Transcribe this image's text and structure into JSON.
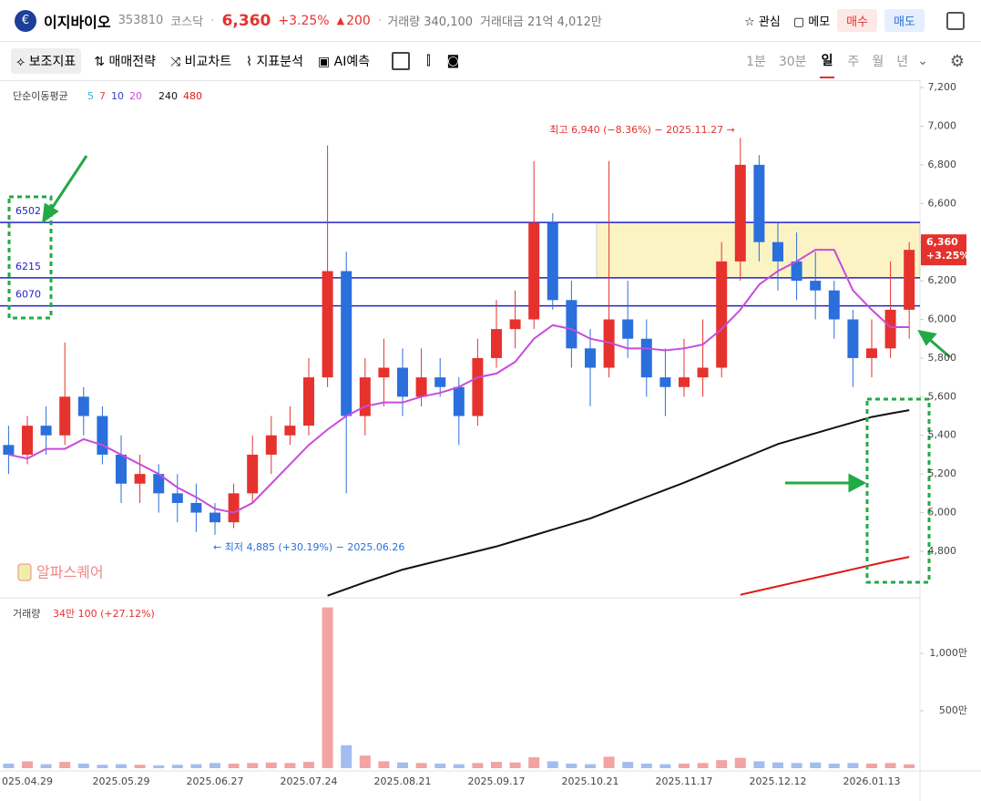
{
  "header": {
    "name": "이지바이오",
    "code": "353810",
    "market": "코스닥",
    "price": "6,360",
    "change": "+3.25%",
    "change_amount": "200",
    "volume_label": "거래량 340,100",
    "amount_label": "거래대금 21억 4,012만",
    "buttons": [
      "관심",
      "메모",
      "매수",
      "매도"
    ]
  },
  "toolbar": {
    "tools": [
      "보조지표",
      "매매전략",
      "비교차트",
      "지표분석",
      "AI예측"
    ],
    "periods": [
      "1분",
      "30분",
      "일",
      "주",
      "월",
      "년"
    ]
  },
  "chart_data": {
    "type": "candlestick",
    "ma_title": "단순이동평균",
    "watermark": "알파스퀘어",
    "categories": [
      null,
      "025.04.29",
      null,
      null,
      null,
      null,
      "2025.05.29",
      null,
      null,
      null,
      null,
      "2025.06.27",
      null,
      null,
      null,
      null,
      "2025.07.24",
      null,
      null,
      null,
      null,
      "2025.08.21",
      null,
      null,
      null,
      null,
      "2025.09.17",
      null,
      null,
      null,
      null,
      "2025.10.21",
      null,
      null,
      null,
      null,
      "2025.11.17",
      null,
      null,
      null,
      null,
      "2025.12.12",
      null,
      null,
      null,
      null,
      "2026.01.13",
      null,
      null
    ],
    "candles": {
      "up_color": "#e5322d",
      "down_color": "#2a6fdb",
      "open": [
        5350,
        5300,
        5450,
        5400,
        5600,
        5500,
        5300,
        5150,
        5200,
        5100,
        5050,
        5000,
        4950,
        5100,
        5300,
        5400,
        5450,
        5700,
        6250,
        5500,
        5700,
        5750,
        5600,
        5700,
        5650,
        5500,
        5800,
        5950,
        6000,
        6500,
        6100,
        5850,
        5750,
        6000,
        5900,
        5700,
        5650,
        5700,
        5750,
        6300,
        6800,
        6400,
        6300,
        6200,
        6150,
        6000,
        5800,
        5850,
        6050
      ],
      "high": [
        5450,
        5500,
        5550,
        5880,
        5650,
        5550,
        5400,
        5300,
        5250,
        5200,
        5150,
        5050,
        5150,
        5400,
        5500,
        5550,
        5800,
        6900,
        6350,
        5800,
        5900,
        5850,
        5850,
        5800,
        5700,
        5900,
        6100,
        6150,
        6820,
        6550,
        6200,
        5950,
        6820,
        6200,
        6000,
        5850,
        5900,
        6000,
        6400,
        6940,
        6850,
        6500,
        6450,
        6350,
        6200,
        6050,
        6000,
        6300,
        6400
      ],
      "low": [
        5200,
        5250,
        5300,
        5350,
        5400,
        5250,
        5050,
        5050,
        5000,
        4950,
        4900,
        4885,
        4920,
        5050,
        5200,
        5350,
        5400,
        5650,
        5100,
        5400,
        5550,
        5500,
        5550,
        5600,
        5350,
        5450,
        5750,
        5850,
        5950,
        6050,
        5750,
        5550,
        5700,
        5800,
        5600,
        5500,
        5600,
        5600,
        5700,
        6200,
        6300,
        6150,
        6100,
        6000,
        5900,
        5650,
        5700,
        5800,
        5900
      ],
      "close": [
        5300,
        5450,
        5400,
        5600,
        5500,
        5300,
        5150,
        5200,
        5100,
        5050,
        5000,
        4950,
        5100,
        5300,
        5400,
        5450,
        5700,
        6250,
        5500,
        5700,
        5750,
        5600,
        5700,
        5650,
        5500,
        5800,
        5950,
        6000,
        6500,
        6100,
        5850,
        5750,
        6000,
        5900,
        5700,
        5650,
        5700,
        5750,
        6300,
        6800,
        6400,
        6300,
        6200,
        6150,
        6000,
        5800,
        5850,
        6050,
        6360
      ]
    },
    "ma_legend": [
      {
        "name": "5",
        "color": "#35b0e0"
      },
      {
        "name": "7",
        "color": "#e04848"
      },
      {
        "name": "10",
        "color": "#3b3bcf"
      },
      {
        "name": "20",
        "color": "#c84bdc"
      },
      {
        "name": "240",
        "color": "#111111"
      },
      {
        "name": "480",
        "color": "#e01818"
      }
    ],
    "ma_series": [
      {
        "name": "20",
        "color": "#c84bdc",
        "values": [
          5300,
          5280,
          5330,
          5330,
          5380,
          5350,
          5300,
          5250,
          5200,
          5130,
          5080,
          5020,
          5000,
          5050,
          5150,
          5250,
          5350,
          5430,
          5500,
          5550,
          5570,
          5570,
          5600,
          5620,
          5650,
          5700,
          5720,
          5780,
          5900,
          5970,
          5950,
          5900,
          5880,
          5850,
          5850,
          5840,
          5850,
          5870,
          5950,
          6050,
          6180,
          6250,
          6300,
          6360,
          6360,
          6150,
          6050,
          5960,
          5960
        ]
      },
      {
        "name": "240",
        "color": "#111111",
        "values": [
          null,
          null,
          null,
          null,
          null,
          null,
          null,
          null,
          null,
          null,
          null,
          null,
          null,
          null,
          null,
          null,
          null,
          4570,
          4605,
          4640,
          4672,
          4705,
          4729,
          4753,
          4777,
          4801,
          4825,
          4854,
          4883,
          4912,
          4941,
          4970,
          5007,
          5044,
          5081,
          5118,
          5155,
          5195,
          5235,
          5275,
          5315,
          5355,
          5383,
          5411,
          5439,
          5467,
          5495,
          5513,
          5530
        ]
      },
      {
        "name": "480",
        "color": "#e01818",
        "values": [
          null,
          null,
          null,
          null,
          null,
          null,
          null,
          null,
          null,
          null,
          null,
          null,
          null,
          null,
          null,
          null,
          null,
          null,
          null,
          null,
          null,
          null,
          null,
          null,
          null,
          null,
          null,
          null,
          null,
          null,
          null,
          null,
          null,
          null,
          null,
          null,
          null,
          null,
          null,
          4575,
          4597,
          4619,
          4641,
          4663,
          4685,
          4707,
          4729,
          4751,
          4771
        ]
      }
    ],
    "levels": [
      6502,
      6215,
      6070
    ],
    "level_color": "#2323c8",
    "high_note": "최고 6,940 (−8.36%) − 2025.11.27 →",
    "low_note": "← 최저 4,885 (+30.19%) − 2025.06.26",
    "ylim": [
      4564,
      7238
    ],
    "yticks": [
      {
        "value": 7200,
        "label": "7,200"
      },
      {
        "value": 7000,
        "label": "7,000"
      },
      {
        "value": 6800,
        "label": "6,800"
      },
      {
        "value": 6600,
        "label": "6,600"
      },
      {
        "value": 6400,
        "label": "6,400"
      },
      {
        "value": 6200,
        "label": "6,200"
      },
      {
        "value": 6000,
        "label": "6,000"
      },
      {
        "value": 5800,
        "label": "5,800"
      },
      {
        "value": 5600,
        "label": "5,600"
      },
      {
        "value": 5400,
        "label": "5,400"
      },
      {
        "value": 5200,
        "label": "5,200"
      },
      {
        "value": 5000,
        "label": "5,000"
      },
      {
        "value": 4800,
        "label": "4,800"
      }
    ],
    "volume": {
      "title": "거래량",
      "summary": "34만 100 (+27.12%)",
      "values": [
        40,
        60,
        35,
        55,
        40,
        30,
        35,
        30,
        25,
        30,
        35,
        45,
        40,
        45,
        50,
        45,
        55,
        1400,
        200,
        110,
        60,
        50,
        45,
        40,
        35,
        45,
        55,
        50,
        95,
        60,
        40,
        35,
        100,
        55,
        40,
        35,
        40,
        45,
        70,
        90,
        60,
        50,
        45,
        50,
        40,
        45,
        40,
        45,
        34
      ],
      "up_color": "#f2a3a3",
      "down_color": "#a4bdf0",
      "ylim": [
        0,
        1452
      ],
      "yticks": [
        {
          "value": 1000,
          "label": "1,000만"
        },
        {
          "value": 500,
          "label": "500만"
        }
      ]
    }
  }
}
